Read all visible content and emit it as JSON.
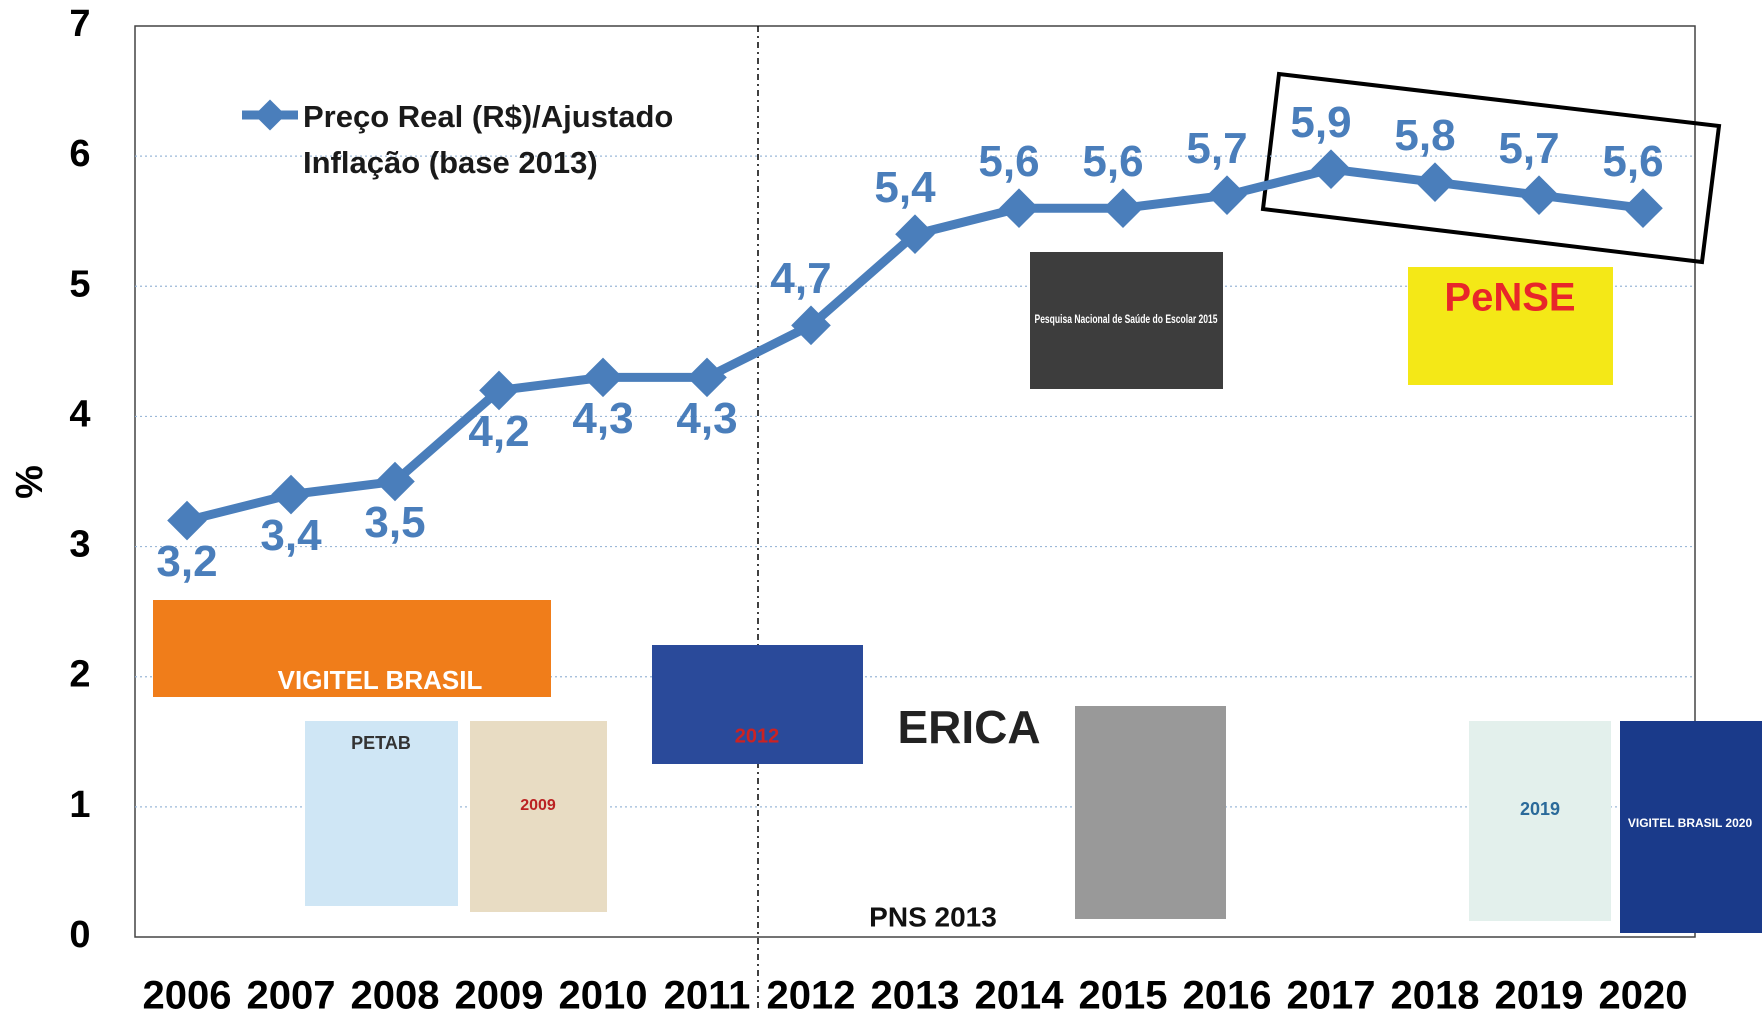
{
  "chart_data": {
    "type": "line",
    "categories": [
      "2006",
      "2007",
      "2008",
      "2009",
      "2010",
      "2011",
      "2012",
      "2013",
      "2014",
      "2015",
      "2016",
      "2017",
      "2018",
      "2019",
      "2020"
    ],
    "series": [
      {
        "name": "Preço Real (R$)/Ajustado Inflação (base 2013)",
        "color": "#4a7ebb",
        "values": [
          3.2,
          3.4,
          3.5,
          4.2,
          4.3,
          4.3,
          4.7,
          5.4,
          5.6,
          5.6,
          5.7,
          5.9,
          5.8,
          5.7,
          5.6
        ],
        "value_labels": [
          "3,2",
          "3,4",
          "3,5",
          "4,2",
          "4,3",
          "4,3",
          "4,7",
          "5,4",
          "5,6",
          "5,6",
          "5,7",
          "5,9",
          "5,8",
          "5,7",
          "5,6"
        ]
      }
    ],
    "ylabel": "%",
    "ylim": [
      0,
      7
    ],
    "yticks": [
      0,
      1,
      2,
      3,
      4,
      5,
      6,
      7
    ],
    "grid": true,
    "annotations": [
      "VIGITEL BRASIL",
      "PETAB",
      "2009",
      "2012",
      "ERICA",
      "PNS 2013",
      "Pesquisa Nacional de Saúde do Escolar 2015",
      "PeNSE",
      "2019",
      "VIGITEL BRASIL 2020"
    ]
  }
}
